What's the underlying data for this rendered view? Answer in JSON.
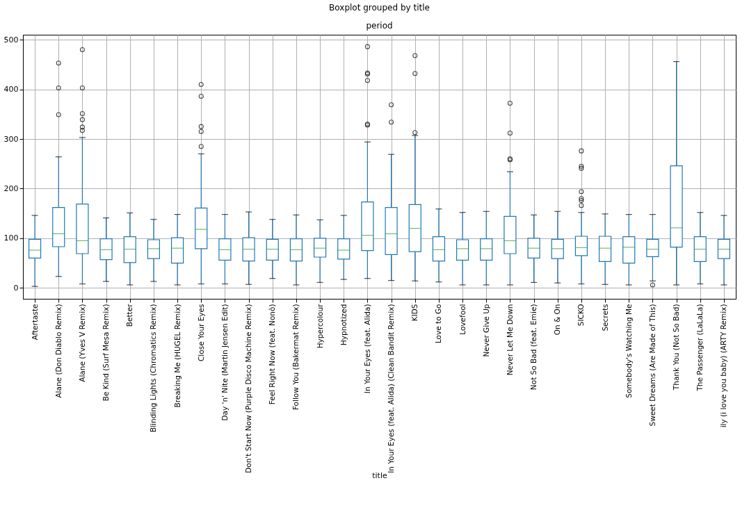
{
  "chart_data": {
    "type": "box",
    "title": "Boxplot grouped by title",
    "subtitle": "period",
    "xlabel": "title",
    "categories": [
      "Aftertaste",
      "Alane (Don Diablo Remix)",
      "Alane (Yves V Remix)",
      "Be Kind (Surf Mesa Remix)",
      "Better",
      "Blinding Lights (Chromatics Remix)",
      "Breaking Me (HUGEL Remix)",
      "Close Your Eyes",
      "Day 'n' Nite (Martin Jensen Edit)",
      "Don't Start Now (Purple Disco Machine Remix)",
      "Feel Right Now (feat. Nonô)",
      "Follow You (Bakermat Remix)",
      "Hypercolour",
      "Hypnotized",
      "In Your Eyes (feat. Alida)",
      "In Your Eyes (feat. Alida) (Clean Bandit Remix)",
      "KIDS",
      "Love to Go",
      "Lovefool",
      "Never Give Up",
      "Never Let Me Down",
      "Not So Bad (feat. Emie)",
      "On & On",
      "SICKO",
      "Secrets",
      "Somebody's Watching Me",
      "Sweet Dreams (Are Made of This)",
      "Thank You (Not So Bad)",
      "The Passenger (LaLaLa)",
      "ily (i love you baby) (ARTY Remix)"
    ],
    "ylim": [
      -22,
      510
    ],
    "yticks": [
      0,
      100,
      200,
      300,
      400,
      500
    ],
    "grid": true,
    "marker": "circle",
    "series": [
      {
        "color": "#1f77b4",
        "boxes": [
          {
            "low": 3,
            "q1": 60,
            "median": 76,
            "q3": 98,
            "high": 146
          },
          {
            "low": 23,
            "q1": 83,
            "median": 109,
            "q3": 162,
            "high": 264,
            "outliers": [
              349,
              403,
              453
            ]
          },
          {
            "low": 8,
            "q1": 69,
            "median": 95,
            "q3": 169,
            "high": 303,
            "outliers": [
              317,
              324,
              339,
              351,
              403,
              480
            ]
          },
          {
            "low": 13,
            "q1": 57,
            "median": 77,
            "q3": 99,
            "high": 141
          },
          {
            "low": 6,
            "q1": 51,
            "median": 78,
            "q3": 103,
            "high": 151
          },
          {
            "low": 13,
            "q1": 59,
            "median": 79,
            "q3": 97,
            "high": 138
          },
          {
            "low": 6,
            "q1": 50,
            "median": 80,
            "q3": 101,
            "high": 148
          },
          {
            "low": 8,
            "q1": 79,
            "median": 118,
            "q3": 161,
            "high": 270,
            "outliers": [
              285,
              315,
              325,
              386,
              410
            ]
          },
          {
            "low": 8,
            "q1": 56,
            "median": 77,
            "q3": 99,
            "high": 148
          },
          {
            "low": 7,
            "q1": 54,
            "median": 78,
            "q3": 101,
            "high": 153
          },
          {
            "low": 19,
            "q1": 56,
            "median": 78,
            "q3": 98,
            "high": 138
          },
          {
            "low": 6,
            "q1": 54,
            "median": 77,
            "q3": 99,
            "high": 147
          },
          {
            "low": 11,
            "q1": 62,
            "median": 80,
            "q3": 100,
            "high": 137
          },
          {
            "low": 17,
            "q1": 58,
            "median": 76,
            "q3": 99,
            "high": 146
          },
          {
            "low": 19,
            "q1": 75,
            "median": 106,
            "q3": 173,
            "high": 294,
            "outliers": [
              328,
              330,
              418,
              431,
              433,
              486
            ]
          },
          {
            "low": 15,
            "q1": 67,
            "median": 109,
            "q3": 162,
            "high": 269,
            "outliers": [
              334,
              369
            ]
          },
          {
            "low": 14,
            "q1": 73,
            "median": 120,
            "q3": 168,
            "high": 307,
            "outliers": [
              313,
              432,
              468
            ]
          },
          {
            "low": 12,
            "q1": 54,
            "median": 77,
            "q3": 103,
            "high": 159
          },
          {
            "low": 6,
            "q1": 56,
            "median": 79,
            "q3": 97,
            "high": 152
          },
          {
            "low": 6,
            "q1": 56,
            "median": 79,
            "q3": 99,
            "high": 154
          },
          {
            "low": 6,
            "q1": 69,
            "median": 95,
            "q3": 144,
            "high": 234,
            "outliers": [
              258,
              260,
              312,
              372
            ]
          },
          {
            "low": 11,
            "q1": 60,
            "median": 80,
            "q3": 100,
            "high": 147
          },
          {
            "low": 10,
            "q1": 59,
            "median": 79,
            "q3": 98,
            "high": 154
          },
          {
            "low": 8,
            "q1": 65,
            "median": 81,
            "q3": 104,
            "high": 152,
            "outliers": [
              166,
              176,
              180,
              194,
              241,
              245,
              276
            ]
          },
          {
            "low": 7,
            "q1": 53,
            "median": 80,
            "q3": 104,
            "high": 149
          },
          {
            "low": 6,
            "q1": 50,
            "median": 82,
            "q3": 103,
            "high": 148
          },
          {
            "low": 14,
            "q1": 63,
            "median": 78,
            "q3": 98,
            "high": 148,
            "outliers": [
              6
            ]
          },
          {
            "low": 6,
            "q1": 82,
            "median": 121,
            "q3": 246,
            "high": 456
          },
          {
            "low": 8,
            "q1": 53,
            "median": 78,
            "q3": 103,
            "high": 152
          },
          {
            "low": 6,
            "q1": 59,
            "median": 78,
            "q3": 98,
            "high": 146
          }
        ]
      }
    ]
  }
}
